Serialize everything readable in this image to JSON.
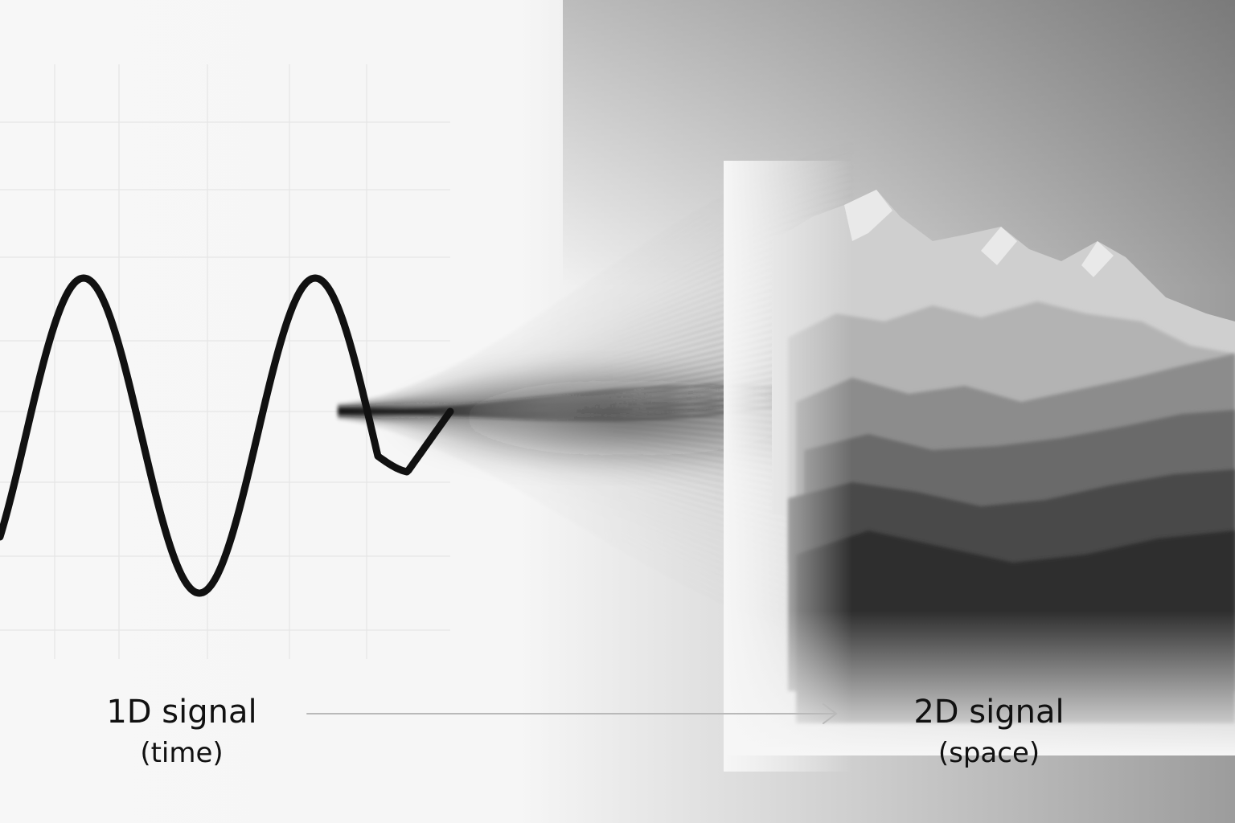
{
  "left_label": {
    "title": "1D signal",
    "subtitle": "(time)"
  },
  "right_label": {
    "title": "2D signal",
    "subtitle": "(space)"
  },
  "colors": {
    "background": "#f6f6f6",
    "signal_line": "#111111",
    "grid": "#e6e6e6",
    "arrow": "#b9b9b9",
    "mountain_dark": "#2e2e2e",
    "mountain_light": "#e8e8e8"
  },
  "icons": [
    "wave-line",
    "flow-streaks",
    "mountain-range",
    "right-arrow-icon"
  ]
}
